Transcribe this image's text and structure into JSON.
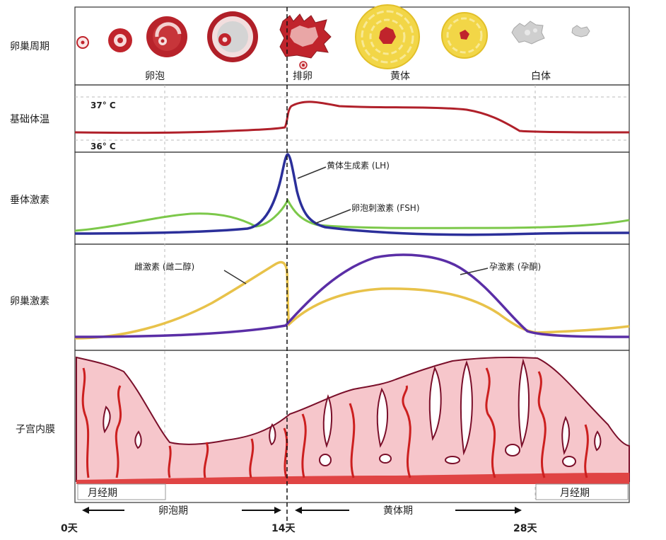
{
  "rows": {
    "ovary": "卵巢周期",
    "temp": "基础体温",
    "pituitary": "垂体激素",
    "ovarian_hormone": "卵巢激素",
    "endometrium": "子宫内膜"
  },
  "stages": {
    "follicle": "卵泡",
    "ovulation": "排卵",
    "corpus_luteum": "黄体",
    "corpus_albicans": "白体"
  },
  "temperature": {
    "high": "37° C",
    "low": "36° C"
  },
  "hormones": {
    "lh": "黄体生成素 (LH)",
    "fsh": "卵泡刺激素 (FSH)",
    "estrogen": "雌激素 (雌二醇)",
    "progesterone": "孕激素 (孕酮)"
  },
  "phases": {
    "menses_left": "月经期",
    "menses_right": "月经期",
    "follicular": "卵泡期",
    "luteal": "黄体期"
  },
  "axis": {
    "day0": "0天",
    "day14": "14天",
    "day28": "28天"
  },
  "colors": {
    "temp_line": "#b0202a",
    "lh_line": "#2b2f9a",
    "fsh_line": "#7cc84a",
    "estrogen_line": "#e8c24a",
    "progesterone_line": "#5a2ea6",
    "endometrium_fill": "#f6c6cb",
    "endometrium_stroke": "#7a0f2a",
    "artery": "#cc1f1f",
    "corpus_luteum": "#f2d647",
    "follicle": "#c0242c"
  }
}
